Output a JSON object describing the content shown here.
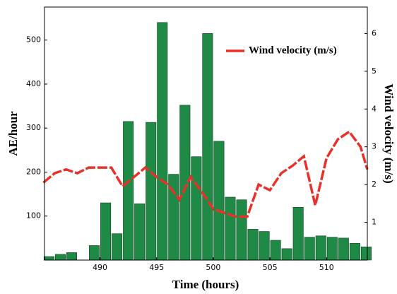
{
  "chart_data": {
    "type": "bar",
    "xlabel": "Time (hours)",
    "ylabel": "AE/hour",
    "y2label": "Wind velocity (m/s)",
    "x": [
      485.5,
      486.5,
      487.5,
      489.5,
      490.5,
      491.5,
      492.5,
      493.5,
      494.5,
      495.5,
      496.5,
      497.5,
      498.5,
      499.5,
      500.5,
      501.5,
      502.5,
      503.5,
      504.5,
      505.5,
      506.5,
      507.5,
      508.5,
      509.5,
      510.5,
      511.5,
      512.5,
      513.5
    ],
    "values": [
      8,
      13,
      17,
      33,
      130,
      60,
      315,
      128,
      313,
      540,
      195,
      352,
      235,
      515,
      270,
      143,
      137,
      70,
      65,
      45,
      26,
      120,
      52,
      55,
      52,
      50,
      38,
      30
    ],
    "color": "#1e8a45",
    "series": [
      {
        "name": "Wind velocity (m/s)",
        "color": "#e8312a",
        "axis": "y2",
        "x": [
          485,
          486,
          487,
          488,
          489,
          490,
          491,
          492,
          493,
          494,
          495,
          496,
          497,
          498,
          499,
          500,
          501,
          502,
          503,
          504,
          505,
          506,
          507,
          508,
          509,
          510,
          511,
          512,
          513,
          513.6
        ],
        "values": [
          2.05,
          2.3,
          2.4,
          2.3,
          2.45,
          2.45,
          2.45,
          1.95,
          2.2,
          2.45,
          2.2,
          2.0,
          1.6,
          2.2,
          1.8,
          1.35,
          1.25,
          1.15,
          1.15,
          2.0,
          1.85,
          2.3,
          2.5,
          2.75,
          1.45,
          2.7,
          3.2,
          3.4,
          3.0,
          2.4
        ]
      }
    ],
    "xlim": [
      485.1,
      513.6
    ],
    "xticks": [
      490,
      495,
      500,
      505,
      510
    ],
    "ylim": [
      0,
      575
    ],
    "yticks": [
      100,
      200,
      300,
      400,
      500
    ],
    "y2lim": [
      0,
      6.7
    ],
    "y2ticks": [
      1,
      2,
      3,
      4,
      5,
      6
    ],
    "legend": "upper right"
  }
}
